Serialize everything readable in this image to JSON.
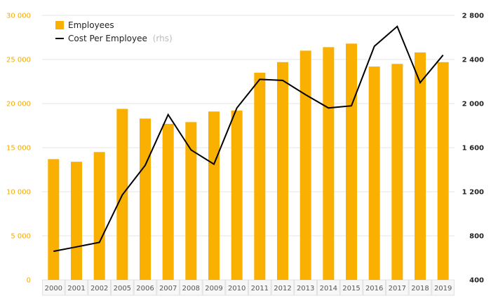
{
  "chart_data": {
    "type": "bar+line",
    "categories": [
      "2000",
      "2001",
      "2002",
      "2005",
      "2006",
      "2007",
      "2008",
      "2009",
      "2010",
      "2011",
      "2012",
      "2013",
      "2014",
      "2015",
      "2016",
      "2017",
      "2018",
      "2019"
    ],
    "series": [
      {
        "name": "Employees",
        "type": "bar",
        "axis": "left",
        "color": "#f9b000",
        "values": [
          13700,
          13400,
          14500,
          19400,
          18300,
          17700,
          17900,
          19100,
          19200,
          23500,
          24700,
          26000,
          26400,
          26800,
          24200,
          24500,
          25800,
          24700
        ]
      },
      {
        "name": "Cost Per Employee",
        "name_suffix": "(rhs)",
        "type": "line",
        "axis": "right",
        "color": "#000000",
        "values": [
          660,
          700,
          740,
          1170,
          1440,
          1900,
          1580,
          1450,
          1960,
          2220,
          2210,
          2080,
          1960,
          1980,
          2520,
          2700,
          2190,
          2440
        ]
      }
    ],
    "y_left": {
      "min": 0,
      "max": 30000,
      "ticks": [
        0,
        5000,
        10000,
        15000,
        20000,
        25000,
        30000
      ],
      "tick_labels": [
        "0",
        "5 000",
        "10 000",
        "15 000",
        "20 000",
        "25 000",
        "30 000"
      ]
    },
    "y_right": {
      "min": 400,
      "max": 2800,
      "ticks": [
        400,
        800,
        1200,
        1600,
        2000,
        2400,
        2800
      ],
      "tick_labels": [
        "400",
        "800",
        "1 200",
        "1 600",
        "2 000",
        "2 400",
        "2 800"
      ]
    },
    "grid": true,
    "legend": {
      "placement": "top-left",
      "items": [
        {
          "label": "Employees",
          "suffix": ""
        },
        {
          "label": "Cost Per Employee",
          "suffix": "(rhs)"
        }
      ]
    },
    "colors": {
      "bar": "#f9b000",
      "line": "#000000",
      "left_axis_text": "#f2a900",
      "grid": "#e6e6e6"
    }
  }
}
